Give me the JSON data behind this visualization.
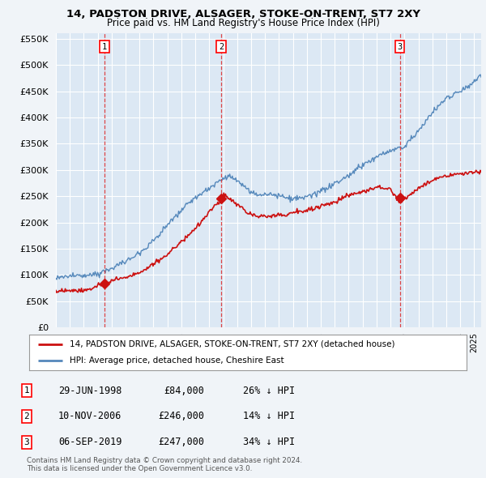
{
  "title": "14, PADSTON DRIVE, ALSAGER, STOKE-ON-TRENT, ST7 2XY",
  "subtitle": "Price paid vs. HM Land Registry's House Price Index (HPI)",
  "bg_color": "#f0f4f8",
  "plot_bg_color": "#dce8f4",
  "grid_color": "#ffffff",
  "hpi_color": "#5588bb",
  "price_color": "#cc1111",
  "vline_color": "#dd3333",
  "sale_points": [
    {
      "date_num": 1998.49,
      "price": 84000,
      "label": "1"
    },
    {
      "date_num": 2006.86,
      "price": 246000,
      "label": "2"
    },
    {
      "date_num": 2019.67,
      "price": 247000,
      "label": "3"
    }
  ],
  "vline_dates": [
    1998.49,
    2006.86,
    2019.67
  ],
  "legend_line1": "14, PADSTON DRIVE, ALSAGER, STOKE-ON-TRENT, ST7 2XY (detached house)",
  "legend_line2": "HPI: Average price, detached house, Cheshire East",
  "table_rows": [
    {
      "num": "1",
      "date": "29-JUN-1998",
      "price": "£84,000",
      "pct": "26% ↓ HPI"
    },
    {
      "num": "2",
      "date": "10-NOV-2006",
      "price": "£246,000",
      "pct": "14% ↓ HPI"
    },
    {
      "num": "3",
      "date": "06-SEP-2019",
      "price": "£247,000",
      "pct": "34% ↓ HPI"
    }
  ],
  "footer": "Contains HM Land Registry data © Crown copyright and database right 2024.\nThis data is licensed under the Open Government Licence v3.0.",
  "xmin": 1995.0,
  "xmax": 2025.5,
  "ymin": 0,
  "ymax": 560000
}
